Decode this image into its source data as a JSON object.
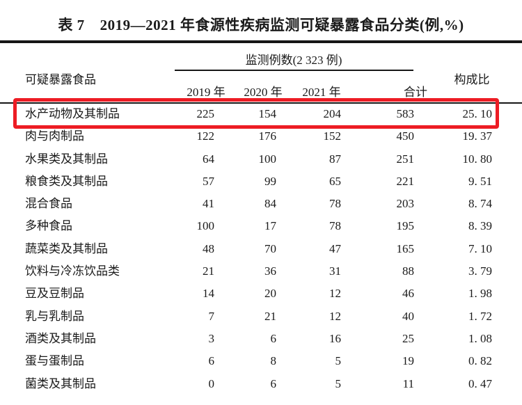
{
  "title": {
    "label": "表 7",
    "caption": "2019—2021 年食源性疾病监测可疑暴露食品分类(例,%)"
  },
  "table": {
    "food_header": "可疑暴露食品",
    "group_header": "监测例数(2 323 例)",
    "year_headers": [
      "2019 年",
      "2020 年",
      "2021 年",
      "合计"
    ],
    "ratio_header": "构成比",
    "rows": [
      {
        "food": "水产动物及其制品",
        "values": [
          "225",
          "154",
          "204",
          "583",
          "25. 10"
        ],
        "highlighted": true
      },
      {
        "food": "肉与肉制品",
        "values": [
          "122",
          "176",
          "152",
          "450",
          "19. 37"
        ],
        "highlighted": false
      },
      {
        "food": "水果类及其制品",
        "values": [
          "64",
          "100",
          "87",
          "251",
          "10. 80"
        ],
        "highlighted": false
      },
      {
        "food": "粮食类及其制品",
        "values": [
          "57",
          "99",
          "65",
          "221",
          "9. 51"
        ],
        "highlighted": false
      },
      {
        "food": "混合食品",
        "values": [
          "41",
          "84",
          "78",
          "203",
          "8. 74"
        ],
        "highlighted": false
      },
      {
        "food": "多种食品",
        "values": [
          "100",
          "17",
          "78",
          "195",
          "8. 39"
        ],
        "highlighted": false
      },
      {
        "food": "蔬菜类及其制品",
        "values": [
          "48",
          "70",
          "47",
          "165",
          "7. 10"
        ],
        "highlighted": false
      },
      {
        "food": "饮料与冷冻饮品类",
        "values": [
          "21",
          "36",
          "31",
          "88",
          "3. 79"
        ],
        "highlighted": false
      },
      {
        "food": "豆及豆制品",
        "values": [
          "14",
          "20",
          "12",
          "46",
          "1. 98"
        ],
        "highlighted": false
      },
      {
        "food": "乳与乳制品",
        "values": [
          "7",
          "21",
          "12",
          "40",
          "1. 72"
        ],
        "highlighted": false
      },
      {
        "food": "酒类及其制品",
        "values": [
          "3",
          "6",
          "16",
          "25",
          "1. 08"
        ],
        "highlighted": false
      },
      {
        "food": "蛋与蛋制品",
        "values": [
          "6",
          "8",
          "5",
          "19",
          "0. 82"
        ],
        "highlighted": false
      },
      {
        "food": "菌类及其制品",
        "values": [
          "0",
          "6",
          "5",
          "11",
          "0. 47"
        ],
        "highlighted": false
      }
    ]
  },
  "highlight": {
    "highlighted_row": "水产动物及其制品",
    "color": "#ed1c24"
  }
}
